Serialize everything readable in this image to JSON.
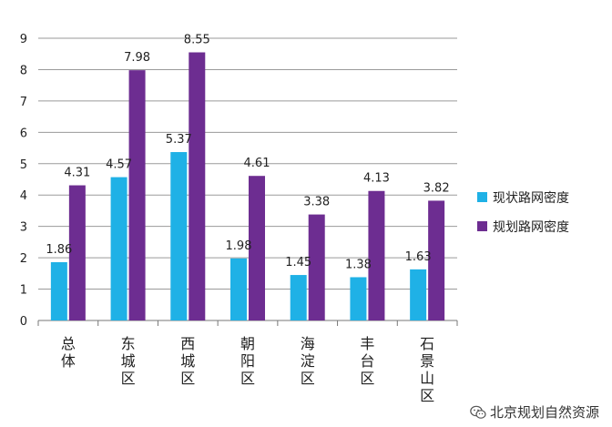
{
  "chart_data": {
    "type": "bar",
    "categories": [
      "总体",
      "东城区",
      "西城区",
      "朝阳区",
      "海淀区",
      "丰台区",
      "石景山区"
    ],
    "series": [
      {
        "name": "现状路网密度",
        "values": [
          1.86,
          4.57,
          5.37,
          1.98,
          1.45,
          1.38,
          1.63
        ],
        "color": "#1fb1e6"
      },
      {
        "name": "规划路网密度",
        "values": [
          4.31,
          7.98,
          8.55,
          4.61,
          3.38,
          4.13,
          3.82
        ],
        "color": "#6d2d91"
      }
    ],
    "data_labels": [
      [
        "1.86",
        "4.57",
        "5.37",
        "1.98",
        "1.45",
        "1.38",
        "1.63"
      ],
      [
        "4.31",
        "7.98",
        "8.55",
        "4.61",
        "3.38",
        "4.13",
        "3.82"
      ]
    ],
    "yticks": [
      "0",
      "1",
      "2",
      "3",
      "4",
      "5",
      "6",
      "7",
      "8",
      "9"
    ],
    "ylim": [
      0,
      9
    ],
    "grid": true,
    "legend_position": "right"
  },
  "watermark": {
    "text": "北京规划自然资源",
    "icon": "wechat-icon"
  }
}
